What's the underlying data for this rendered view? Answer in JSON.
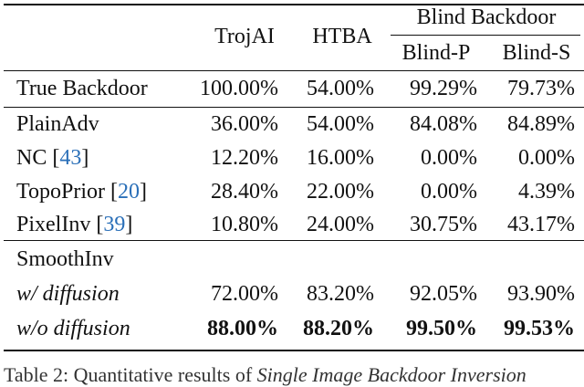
{
  "header": {
    "columns": [
      "TrojAI",
      "HTBA"
    ],
    "group": "Blind Backdoor",
    "subcolumns": [
      "Blind-P",
      "Blind-S"
    ]
  },
  "rows": [
    {
      "label": [
        "True Backdoor"
      ],
      "values": [
        "100.00%",
        "54.00%",
        "99.29%",
        "79.73%"
      ]
    },
    {
      "label": [
        "PlainAdv"
      ],
      "values": [
        "36.00%",
        "54.00%",
        "84.08%",
        "84.89%"
      ]
    },
    {
      "label": [
        "NC [",
        "43",
        "]"
      ],
      "values": [
        "12.20%",
        "16.00%",
        "0.00%",
        "0.00%"
      ]
    },
    {
      "label": [
        "TopoPrior [",
        "20",
        "]"
      ],
      "values": [
        "28.40%",
        "22.00%",
        "0.00%",
        "4.39%"
      ]
    },
    {
      "label": [
        "PixelInv [",
        "39",
        "]"
      ],
      "values": [
        "10.80%",
        "24.00%",
        "30.75%",
        "43.17%"
      ]
    },
    {
      "label": [
        "SmoothInv"
      ]
    },
    {
      "label": [
        "w/ diffusion"
      ],
      "italic": true,
      "values": [
        "72.00%",
        "83.20%",
        "92.05%",
        "93.90%"
      ]
    },
    {
      "label": [
        "w/o diffusion"
      ],
      "italic": true,
      "bold": true,
      "values": [
        "88.00%",
        "88.20%",
        "99.50%",
        "99.53%"
      ]
    }
  ],
  "caption": {
    "text": "Table 2: Quantitative results of ",
    "emphasis": "Single Image Backdoor Inversion"
  }
}
